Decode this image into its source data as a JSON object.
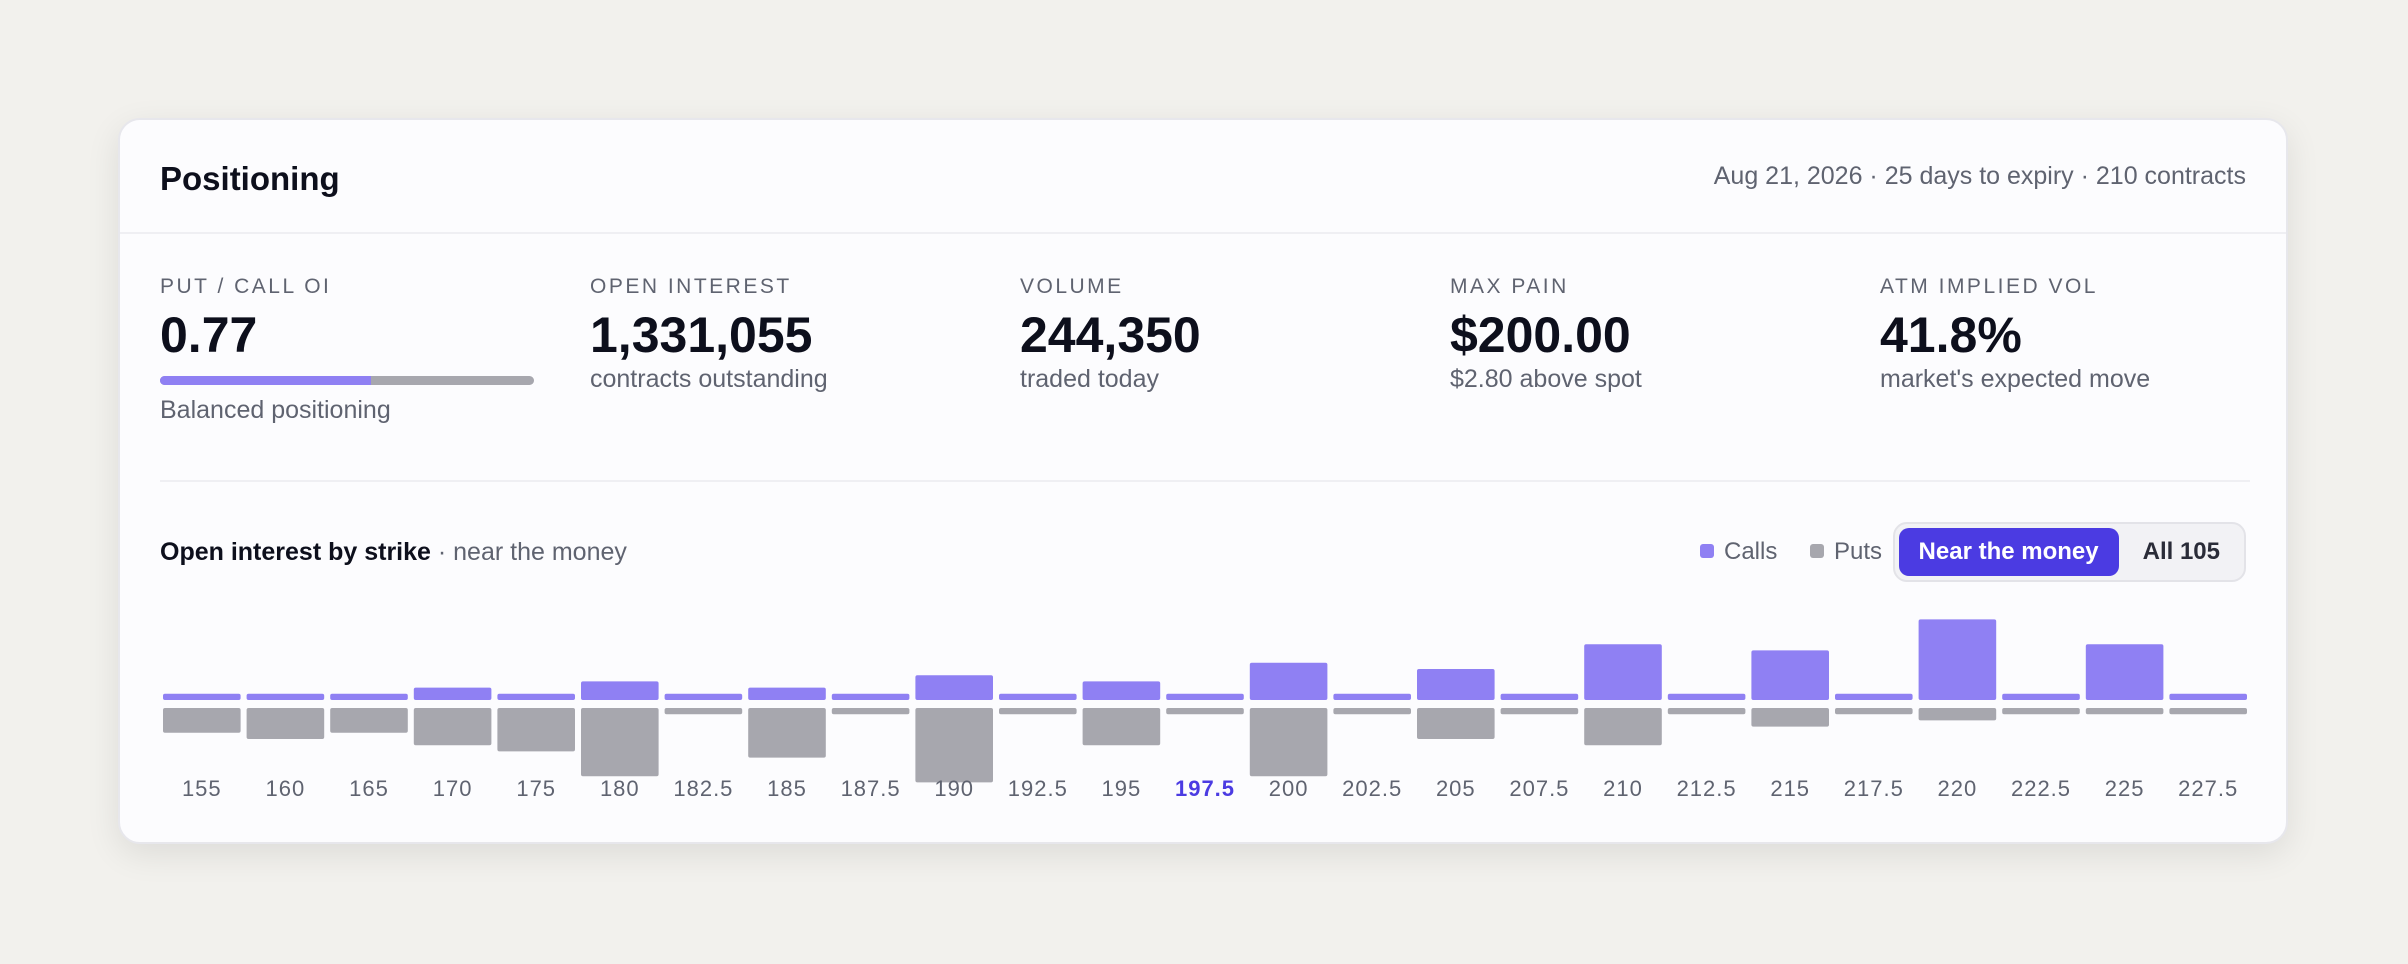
{
  "header": {
    "title": "Positioning",
    "meta": "Aug 21, 2026 · 25 days to expiry · 210 contracts"
  },
  "stats": {
    "put_call": {
      "label": "PUT / CALL OI",
      "value": "0.77",
      "sub": "Balanced positioning",
      "bar_fraction": 0.565
    },
    "open_interest": {
      "label": "OPEN INTEREST",
      "value": "1,331,055",
      "sub": "contracts outstanding"
    },
    "volume": {
      "label": "VOLUME",
      "value": "244,350",
      "sub": "traded today"
    },
    "max_pain": {
      "label": "MAX PAIN",
      "value": "$200.00",
      "sub": "$2.80 above spot"
    },
    "atm_iv": {
      "label": "ATM IMPLIED VOL",
      "value": "41.8%",
      "sub": "market's expected move"
    }
  },
  "chart_section": {
    "title": "Open interest by strike",
    "subtitle": " · near the money",
    "legend": {
      "calls": "Calls",
      "puts": "Puts"
    },
    "toggle": {
      "near": "Near the money",
      "all": "All 105"
    }
  },
  "colors": {
    "calls": "#8f80f3",
    "puts": "#a7a7ae",
    "accent": "#4b3be2",
    "highlight_label": "#4b3be2",
    "tick_label": "#5f6370"
  },
  "chart_data": {
    "type": "bar",
    "categories": [
      "155",
      "160",
      "165",
      "170",
      "175",
      "180",
      "182.5",
      "185",
      "187.5",
      "190",
      "192.5",
      "195",
      "197.5",
      "200",
      "202.5",
      "205",
      "207.5",
      "210",
      "212.5",
      "215",
      "217.5",
      "220",
      "222.5",
      "225",
      "227.5"
    ],
    "series": [
      {
        "name": "Calls",
        "values": [
          1,
          1,
          1,
          2,
          1,
          3,
          1,
          2,
          1,
          4,
          1,
          3,
          1,
          6,
          1,
          5,
          1,
          9,
          1,
          8,
          1,
          13,
          1,
          9,
          1
        ]
      },
      {
        "name": "Puts",
        "values": [
          4,
          5,
          4,
          6,
          7,
          11,
          1,
          8,
          1,
          12,
          1,
          6,
          1,
          11,
          1,
          5,
          1,
          6,
          1,
          3,
          1,
          2,
          1,
          1,
          1
        ]
      }
    ],
    "highlight_category": "197.5",
    "layout": "mirrored"
  }
}
